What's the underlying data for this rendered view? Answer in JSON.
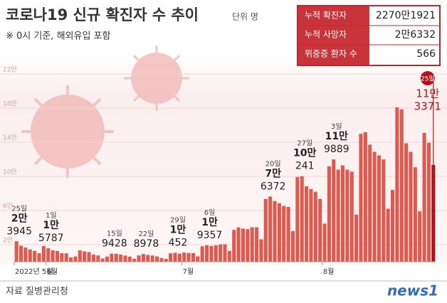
{
  "title": "코로나19 신규 확진자 수 추이",
  "unit": "단위 명",
  "subtitle": "※ 0시 기준, 해외유입 포함",
  "info_table": {
    "rows": [
      [
        "누적 확진자",
        "2270만1921"
      ],
      [
        "누적 사망자",
        "2만6332"
      ],
      [
        "위중증 환자 수",
        "566"
      ]
    ]
  },
  "source": "자료 질병관리청",
  "logo": "news1",
  "chart_data": {
    "type": "bar",
    "color": "#dc5a50",
    "highlight_color": "#b3121c",
    "grid": true,
    "ylim": [
      0,
      230000
    ],
    "yticks": [
      {
        "value": 20000,
        "label": "2만"
      },
      {
        "value": 60000,
        "label": "6만"
      },
      {
        "value": 100000,
        "label": "10만"
      },
      {
        "value": 140000,
        "label": "14만"
      },
      {
        "value": 180000,
        "label": "18만"
      },
      {
        "value": 220000,
        "label": "22만"
      }
    ],
    "xticks": [
      {
        "value": 0,
        "label": "2022년 5월"
      },
      {
        "value": 7,
        "label": "6월"
      },
      {
        "value": 37,
        "label": "7월"
      },
      {
        "value": 68,
        "label": "8월"
      }
    ],
    "categories": [
      "25일",
      null,
      null,
      null,
      null,
      null,
      null,
      "1일",
      null,
      null,
      null,
      null,
      null,
      null,
      null,
      null,
      null,
      null,
      null,
      null,
      null,
      "15일",
      null,
      null,
      null,
      null,
      null,
      null,
      "22일",
      null,
      null,
      null,
      null,
      null,
      null,
      "29일",
      null,
      null,
      null,
      null,
      null,
      null,
      "6일",
      null,
      null,
      null,
      null,
      null,
      null,
      null,
      null,
      null,
      null,
      null,
      null,
      null,
      "20일",
      null,
      null,
      null,
      null,
      null,
      null,
      "27일",
      null,
      null,
      null,
      null,
      null,
      null,
      "3일",
      null,
      null,
      null,
      null,
      null,
      null,
      null,
      null,
      null,
      null,
      null,
      null,
      null,
      null,
      null,
      null,
      null,
      null,
      null,
      null,
      null,
      "25일"
    ],
    "values": [
      23945,
      18800,
      16584,
      14410,
      12648,
      9971,
      18425,
      15787,
      13358,
      12542,
      10058,
      9830,
      5022,
      6171,
      13358,
      12155,
      11320,
      8439,
      7382,
      3828,
      6064,
      9428,
      9316,
      8401,
      7198,
      6068,
      3532,
      7382,
      8978,
      8001,
      7243,
      6236,
      4421,
      3423,
      9893,
      10452,
      9528,
      10711,
      10243,
      10059,
      6249,
      18140,
      19357,
      18505,
      19320,
      20286,
      20405,
      12689,
      37347,
      40266,
      38882,
      38291,
      40339,
      40342,
      26299,
      73582,
      76372,
      71148,
      68550,
      65429,
      64232,
      35863,
      99310,
      100241,
      88373,
      85271,
      81995,
      73588,
      44654,
      111789,
      119889,
      107860,
      112882,
      107870,
      105507,
      55280,
      149835,
      151748,
      137193,
      128705,
      124592,
      119922,
      62070,
      84110,
      180783,
      178558,
      138803,
      128714,
      110655,
      59051,
      150897,
      139339,
      113371
    ],
    "value_labels": [
      [
        "2만",
        "3945"
      ],
      null,
      null,
      null,
      null,
      null,
      null,
      [
        "1만",
        "5787"
      ],
      null,
      null,
      null,
      null,
      null,
      null,
      null,
      null,
      null,
      null,
      null,
      null,
      null,
      [
        "9428"
      ],
      null,
      null,
      null,
      null,
      null,
      null,
      [
        "8978"
      ],
      null,
      null,
      null,
      null,
      null,
      null,
      [
        "1만",
        "452"
      ],
      null,
      null,
      null,
      null,
      null,
      null,
      [
        "1만",
        "9357"
      ],
      null,
      null,
      null,
      null,
      null,
      null,
      null,
      null,
      null,
      null,
      null,
      null,
      null,
      [
        "7만",
        "6372"
      ],
      null,
      null,
      null,
      null,
      null,
      null,
      [
        "10만",
        "241"
      ],
      null,
      null,
      null,
      null,
      null,
      null,
      [
        "11만",
        "9889"
      ],
      null,
      null,
      null,
      null,
      null,
      null,
      null,
      null,
      null,
      null,
      null,
      null,
      null,
      null,
      null,
      null,
      null,
      null,
      null,
      null,
      null,
      [
        "11만",
        "3371"
      ]
    ]
  }
}
